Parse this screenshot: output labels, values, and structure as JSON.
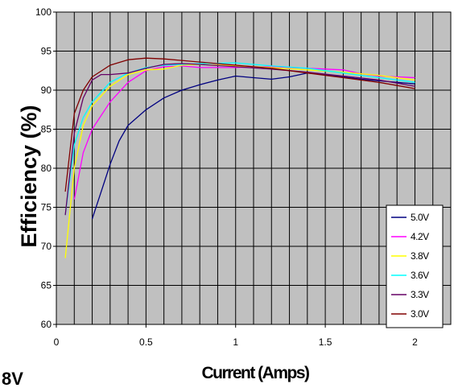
{
  "chart_data": {
    "type": "line",
    "xlabel": "Current (Amps)",
    "ylabel": "Efficiency (%)",
    "xlim": [
      0,
      2.2
    ],
    "ylim": [
      60,
      100
    ],
    "x_ticks": [
      "0",
      "0.5",
      "1",
      "1.5",
      "2"
    ],
    "y_ticks": [
      "60",
      "65",
      "70",
      "75",
      "80",
      "85",
      "90",
      "95",
      "100"
    ],
    "grid": true,
    "legend_position": "bottom-right",
    "series": [
      {
        "name": "5.0V",
        "color": "#000080",
        "points": [
          [
            0.2,
            73.5
          ],
          [
            0.25,
            77
          ],
          [
            0.3,
            80.5
          ],
          [
            0.35,
            83.5
          ],
          [
            0.4,
            85.5
          ],
          [
            0.5,
            87.5
          ],
          [
            0.6,
            89
          ],
          [
            0.7,
            90
          ],
          [
            0.8,
            90.7
          ],
          [
            0.9,
            91.3
          ],
          [
            1.0,
            91.8
          ],
          [
            1.1,
            91.6
          ],
          [
            1.2,
            91.4
          ],
          [
            1.3,
            91.7
          ],
          [
            1.4,
            92.2
          ],
          [
            1.5,
            92
          ],
          [
            1.6,
            91.7
          ],
          [
            1.7,
            91.4
          ],
          [
            1.8,
            91.2
          ],
          [
            1.9,
            91
          ],
          [
            2.0,
            90.8
          ]
        ]
      },
      {
        "name": "4.2V",
        "color": "#ff00ff",
        "points": [
          [
            0.1,
            76
          ],
          [
            0.15,
            82
          ],
          [
            0.2,
            85
          ],
          [
            0.3,
            88.5
          ],
          [
            0.4,
            91
          ],
          [
            0.5,
            92.5
          ],
          [
            0.6,
            93
          ],
          [
            0.7,
            93.1
          ],
          [
            0.8,
            92.9
          ],
          [
            1.0,
            92.9
          ],
          [
            1.2,
            93
          ],
          [
            1.4,
            92.8
          ],
          [
            1.6,
            92.6
          ],
          [
            1.7,
            92.1
          ],
          [
            1.8,
            91.8
          ],
          [
            1.9,
            91.7
          ],
          [
            2.0,
            91.6
          ]
        ]
      },
      {
        "name": "3.8V",
        "color": "#ffff00",
        "points": [
          [
            0.05,
            68.5
          ],
          [
            0.1,
            80
          ],
          [
            0.15,
            85.5
          ],
          [
            0.2,
            88
          ],
          [
            0.3,
            90.5
          ],
          [
            0.4,
            92
          ],
          [
            0.5,
            92.6
          ],
          [
            0.6,
            92.7
          ],
          [
            0.7,
            93.2
          ],
          [
            0.8,
            93.3
          ],
          [
            1.0,
            93.1
          ],
          [
            1.2,
            92.9
          ],
          [
            1.4,
            92.6
          ],
          [
            1.6,
            92.3
          ],
          [
            1.8,
            91.9
          ],
          [
            2.0,
            91.3
          ]
        ]
      },
      {
        "name": "3.6V",
        "color": "#00ffff",
        "points": [
          [
            0.05,
            74
          ],
          [
            0.1,
            83
          ],
          [
            0.15,
            86.5
          ],
          [
            0.2,
            88.5
          ],
          [
            0.3,
            91
          ],
          [
            0.4,
            92.2
          ],
          [
            0.5,
            92.9
          ],
          [
            0.6,
            93.2
          ],
          [
            0.7,
            93.3
          ],
          [
            0.8,
            93.4
          ],
          [
            1.0,
            93.5
          ],
          [
            1.2,
            93.1
          ],
          [
            1.4,
            92.8
          ],
          [
            1.6,
            92.2
          ],
          [
            1.8,
            91.6
          ],
          [
            2.0,
            91
          ]
        ]
      },
      {
        "name": "3.3V",
        "color": "#660066",
        "points": [
          [
            0.05,
            74
          ],
          [
            0.1,
            84.5
          ],
          [
            0.15,
            89
          ],
          [
            0.2,
            91.3
          ],
          [
            0.25,
            92
          ],
          [
            0.3,
            92
          ],
          [
            0.4,
            92.2
          ],
          [
            0.5,
            92.8
          ],
          [
            0.6,
            93.3
          ],
          [
            0.7,
            93.4
          ],
          [
            0.8,
            93.3
          ],
          [
            1.0,
            93
          ],
          [
            1.2,
            92.7
          ],
          [
            1.4,
            92.3
          ],
          [
            1.6,
            91.8
          ],
          [
            1.8,
            91.3
          ],
          [
            2.0,
            90.5
          ]
        ]
      },
      {
        "name": "3.0V",
        "color": "#800000",
        "points": [
          [
            0.05,
            77
          ],
          [
            0.1,
            87
          ],
          [
            0.15,
            90
          ],
          [
            0.2,
            91.7
          ],
          [
            0.3,
            93.2
          ],
          [
            0.4,
            93.9
          ],
          [
            0.5,
            94.1
          ],
          [
            0.6,
            94
          ],
          [
            0.7,
            93.8
          ],
          [
            0.8,
            93.6
          ],
          [
            1.0,
            93.2
          ],
          [
            1.2,
            92.8
          ],
          [
            1.4,
            92.2
          ],
          [
            1.6,
            91.6
          ],
          [
            1.8,
            91
          ],
          [
            2.0,
            90.2
          ]
        ]
      }
    ]
  },
  "corner_text": "8V"
}
